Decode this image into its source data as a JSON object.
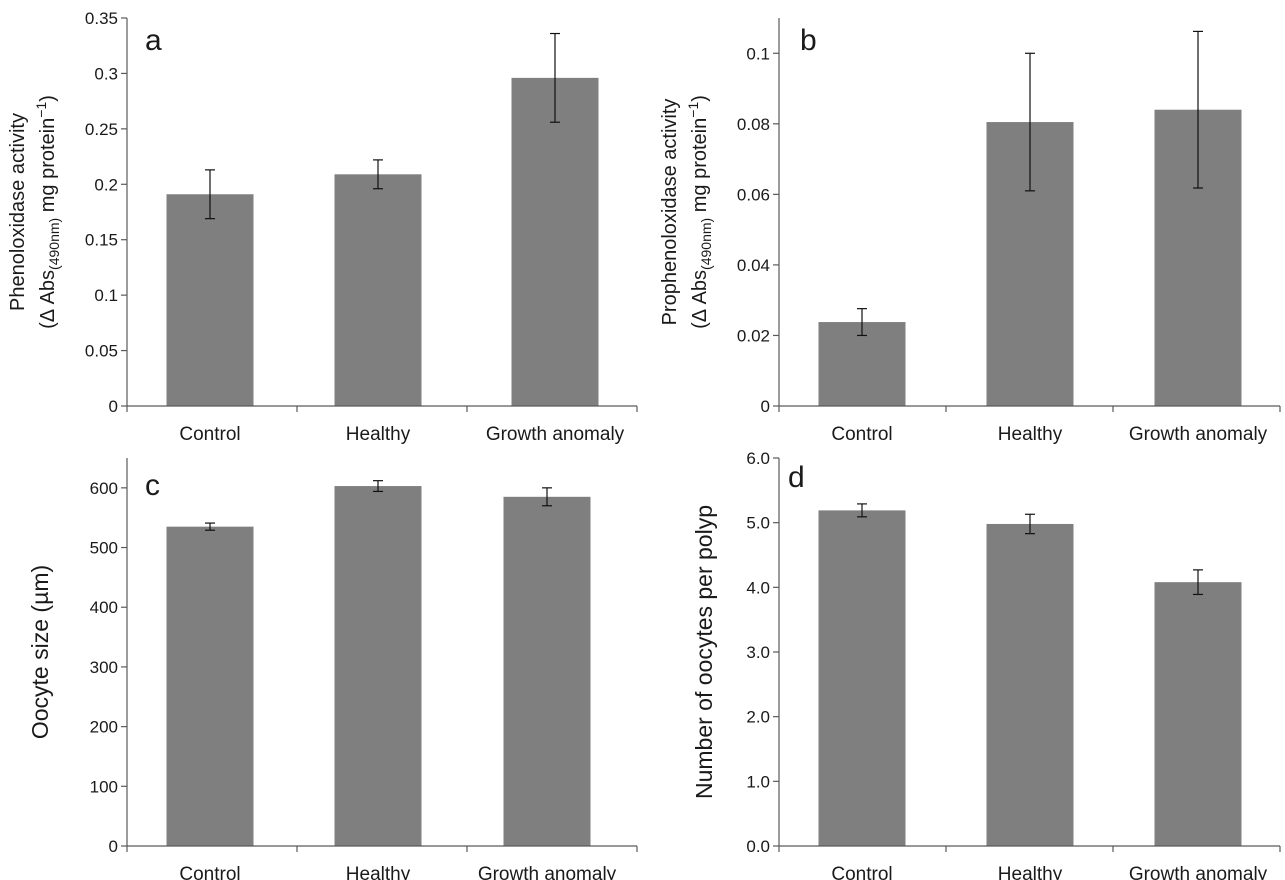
{
  "colors": {
    "bar": "#7f7f7f",
    "axis": "#5a5a5a",
    "error_bar": "#111111"
  },
  "chart_data": [
    {
      "panel": "a",
      "type": "bar",
      "categories": [
        "Control",
        "Healthy",
        "Growth anomaly"
      ],
      "values": [
        0.191,
        0.209,
        0.296
      ],
      "error": [
        0.022,
        0.013,
        0.04
      ],
      "ylabel_line1": "Phenoloxidase activity",
      "ylabel_line2": {
        "pre": "(Δ Abs",
        "sub": "(490nm)",
        "mid": " mg protein",
        "sup": "−1",
        "post": ")"
      },
      "ylim": [
        0,
        0.35
      ],
      "yticks": [
        "0",
        "0.05",
        "0.1",
        "0.15",
        "0.2",
        "0.25",
        "0.3",
        "0.35"
      ],
      "grid": false
    },
    {
      "panel": "b",
      "type": "bar",
      "categories": [
        "Control",
        "Healthy",
        "Growth anomaly"
      ],
      "values": [
        0.0238,
        0.0805,
        0.084
      ],
      "error": [
        0.0038,
        0.0195,
        0.0222
      ],
      "ylabel_line1": "Prophenoloxidase activity",
      "ylabel_line2": {
        "pre": "(Δ Abs",
        "sub": "(490nm)",
        "mid": " mg protein",
        "sup": "−1",
        "post": ")"
      },
      "ylim": [
        0,
        0.11
      ],
      "yticks": [
        "0",
        "0.02",
        "0.04",
        "0.06",
        "0.08",
        "0.1"
      ],
      "ytick_values": [
        0,
        0.02,
        0.04,
        0.06,
        0.08,
        0.1
      ],
      "grid": false
    },
    {
      "panel": "c",
      "type": "bar",
      "categories": [
        "Control",
        "Healthy",
        "Growth anomaly"
      ],
      "values": [
        535,
        603,
        585
      ],
      "error": [
        6,
        9,
        15
      ],
      "ylabel": "Oocyte size (µm)",
      "ylim": [
        0,
        650
      ],
      "yticks": [
        "0",
        "100",
        "200",
        "300",
        "400",
        "500",
        "600"
      ],
      "ytick_values": [
        0,
        100,
        200,
        300,
        400,
        500,
        600
      ],
      "grid": false
    },
    {
      "panel": "d",
      "type": "bar",
      "categories": [
        "Control",
        "Healthy",
        "Growth anomaly"
      ],
      "values": [
        5.19,
        4.98,
        4.08
      ],
      "error": [
        0.1,
        0.15,
        0.19
      ],
      "ylabel": "Number of oocytes per polyp",
      "ylim": [
        0,
        6.0
      ],
      "yticks": [
        "0.0",
        "1.0",
        "2.0",
        "3.0",
        "4.0",
        "5.0",
        "6.0"
      ],
      "ytick_values": [
        0,
        1,
        2,
        3,
        4,
        5,
        6
      ],
      "grid": false
    }
  ]
}
